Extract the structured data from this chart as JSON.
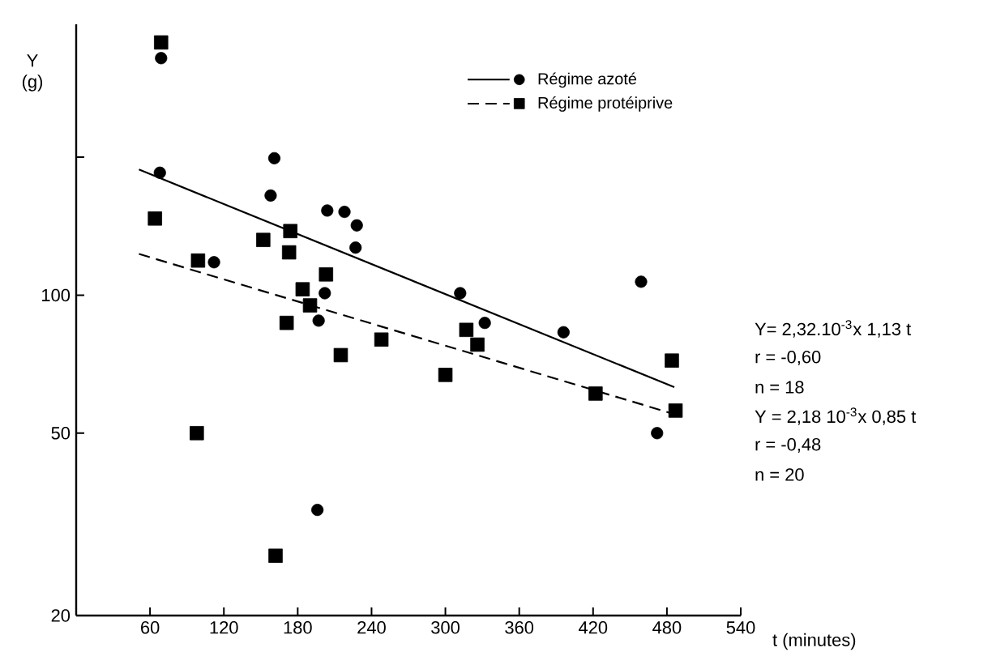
{
  "chart_data": {
    "type": "scatter",
    "xlabel": "t (minutes)",
    "ylabel": "Y (g)",
    "xlim": [
      0,
      540
    ],
    "xticks": [
      60,
      120,
      180,
      240,
      300,
      360,
      420,
      480,
      540
    ],
    "ylim": [
      20,
      390
    ],
    "yticks": [
      20,
      50,
      100,
      {
        "value": 200,
        "label": null
      }
    ],
    "log": "y",
    "legend": "top right",
    "series": [
      {
        "name": "Régime azoté",
        "marker": "circle",
        "color": "#000000",
        "x": [
          69,
          68,
          161,
          158,
          204,
          218,
          228,
          227,
          112,
          202,
          197,
          312,
          196,
          332,
          396,
          459,
          472
        ],
        "values": [
          329,
          185,
          199,
          165,
          153,
          152,
          142,
          127,
          118,
          101,
          88,
          101,
          34,
          87,
          83,
          107,
          50
        ]
      },
      {
        "name": "Régime protéiprive",
        "marker": "square",
        "color": "#000000",
        "x": [
          69,
          64,
          99,
          152,
          174,
          173,
          203,
          184,
          190,
          171,
          215,
          248,
          300,
          98,
          162,
          317,
          326,
          484,
          422,
          487
        ],
        "values": [
          356,
          147,
          119,
          132,
          138,
          124,
          111,
          103,
          95,
          87,
          74,
          80,
          67,
          50,
          27,
          84,
          78,
          72,
          61,
          56
        ]
      },
      {
        "type": "line",
        "line_style": "solid",
        "color": "#000000",
        "x": [
          51,
          486
        ],
        "values": [
          188,
          63
        ]
      },
      {
        "type": "line",
        "line_style": "dashed",
        "color": "#000000",
        "x": [
          51,
          486
        ],
        "values": [
          123,
          55
        ]
      }
    ],
    "annotations": [
      "Y= 2,32.10$^{-3}$x 1,13 t",
      "r = -0,60",
      "n = 18",
      "Y = 2,18 10$^{-3}$x 0,85 t",
      "r = -0,48",
      "n = 20"
    ]
  }
}
